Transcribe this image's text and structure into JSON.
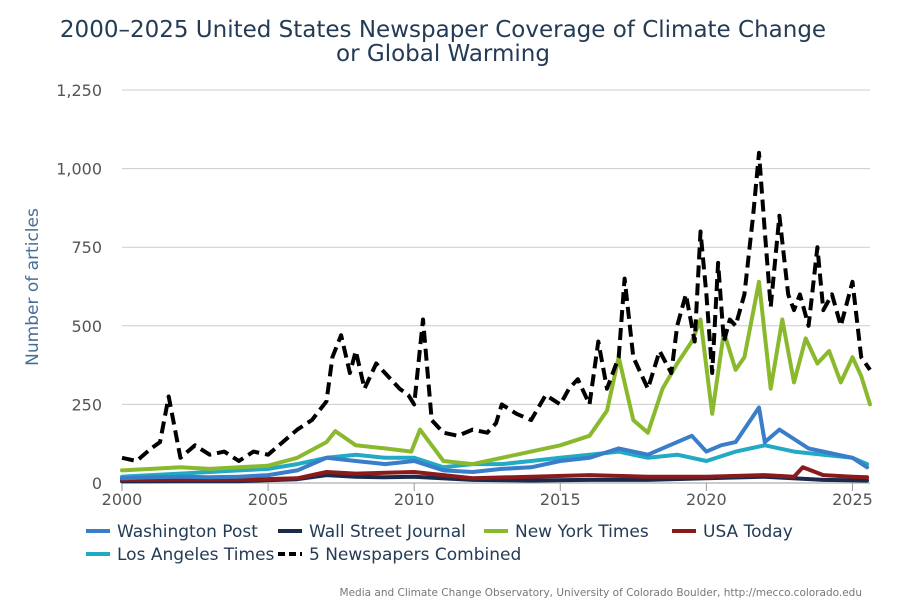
{
  "chart_data": {
    "type": "line",
    "title_line1": "2000–2025 United States Newspaper Coverage of Climate Change",
    "title_line2": "or Global Warming",
    "ylabel": "Number of articles",
    "xlabel": "",
    "xlim": [
      2000,
      2025.6
    ],
    "ylim": [
      0,
      1250
    ],
    "x_ticks": [
      2000,
      2005,
      2010,
      2015,
      2020,
      2025
    ],
    "x_tick_labels": [
      "2000",
      "2005",
      "2010",
      "2015",
      "2020",
      "2025"
    ],
    "y_ticks": [
      0,
      250,
      500,
      750,
      1000,
      1250
    ],
    "y_tick_labels": [
      "0",
      "250",
      "500",
      "750",
      "1,000",
      "1,250"
    ],
    "grid": "horizontal",
    "legend_position": "bottom",
    "credit": "Media and Climate Change Observatory, University of Colorado Boulder, http://mecco.colorado.edu",
    "series": [
      {
        "name": "Washington Post",
        "color": "#3a7dc9",
        "dash": "solid",
        "x": [
          2000,
          2001,
          2002,
          2003,
          2004,
          2005,
          2006,
          2007,
          2008,
          2009,
          2010,
          2011,
          2012,
          2013,
          2014,
          2015,
          2016,
          2017,
          2018,
          2019,
          2019.5,
          2020,
          2020.5,
          2021,
          2021.8,
          2022,
          2022.5,
          2023,
          2023.5,
          2024,
          2025,
          2025.5
        ],
        "y": [
          15,
          18,
          20,
          18,
          20,
          25,
          40,
          80,
          70,
          60,
          70,
          40,
          35,
          45,
          50,
          70,
          80,
          110,
          90,
          130,
          150,
          100,
          120,
          130,
          240,
          130,
          170,
          140,
          110,
          100,
          80,
          50
        ]
      },
      {
        "name": "Wall Street Journal",
        "color": "#1a2a4a",
        "dash": "solid",
        "x": [
          2000,
          2002,
          2004,
          2006,
          2007,
          2008,
          2009,
          2010,
          2012,
          2014,
          2016,
          2018,
          2020,
          2022,
          2024,
          2025.5
        ],
        "y": [
          5,
          6,
          6,
          12,
          25,
          20,
          18,
          20,
          10,
          8,
          10,
          10,
          15,
          20,
          10,
          8
        ]
      },
      {
        "name": "New York Times",
        "color": "#8ab92d",
        "dash": "solid",
        "x": [
          2000,
          2001,
          2002,
          2003,
          2004,
          2005,
          2006,
          2007,
          2007.3,
          2008,
          2009,
          2009.9,
          2010.2,
          2011,
          2012,
          2013,
          2014,
          2015,
          2016,
          2016.6,
          2017,
          2017.5,
          2018,
          2018.5,
          2019,
          2019.5,
          2019.8,
          2020.2,
          2020.6,
          2021,
          2021.3,
          2021.8,
          2022.2,
          2022.6,
          2023,
          2023.4,
          2023.8,
          2024.2,
          2024.6,
          2025,
          2025.3,
          2025.6
        ],
        "y": [
          40,
          45,
          50,
          45,
          50,
          55,
          80,
          130,
          165,
          120,
          110,
          100,
          170,
          70,
          60,
          80,
          100,
          120,
          150,
          230,
          400,
          200,
          160,
          300,
          380,
          450,
          520,
          220,
          480,
          360,
          400,
          640,
          300,
          520,
          320,
          460,
          380,
          420,
          320,
          400,
          340,
          250
        ]
      },
      {
        "name": "USA Today",
        "color": "#8b1a1a",
        "dash": "solid",
        "x": [
          2000,
          2002,
          2004,
          2006,
          2007,
          2008,
          2010,
          2012,
          2014,
          2016,
          2018,
          2020,
          2022,
          2023,
          2023.3,
          2024,
          2025,
          2025.5
        ],
        "y": [
          10,
          10,
          10,
          15,
          35,
          30,
          35,
          15,
          20,
          25,
          20,
          20,
          25,
          20,
          50,
          25,
          20,
          18
        ]
      },
      {
        "name": "Los Angeles Times",
        "color": "#22aac4",
        "dash": "solid",
        "x": [
          2000,
          2001,
          2002,
          2003,
          2004,
          2005,
          2006,
          2007,
          2008,
          2009,
          2010,
          2011,
          2012,
          2013,
          2014,
          2015,
          2016,
          2017,
          2018,
          2019,
          2020,
          2021,
          2022,
          2023,
          2024,
          2025,
          2025.5
        ],
        "y": [
          20,
          25,
          30,
          35,
          40,
          45,
          60,
          80,
          90,
          80,
          80,
          50,
          60,
          60,
          70,
          80,
          90,
          100,
          80,
          90,
          70,
          100,
          120,
          100,
          90,
          80,
          60
        ]
      },
      {
        "name": "5 Newspapers Combined",
        "color": "#000000",
        "dash": "dashed",
        "x": [
          2000,
          2000.5,
          2001,
          2001.3,
          2001.6,
          2002,
          2002.5,
          2003,
          2003.5,
          2004,
          2004.5,
          2005,
          2005.5,
          2006,
          2006.5,
          2007,
          2007.2,
          2007.5,
          2007.8,
          2008,
          2008.3,
          2008.7,
          2009,
          2009.5,
          2009.8,
          2010,
          2010.3,
          2010.6,
          2011,
          2011.5,
          2012,
          2012.5,
          2012.8,
          2013,
          2013.5,
          2014,
          2014.5,
          2015,
          2015.3,
          2015.6,
          2016,
          2016.3,
          2016.6,
          2017,
          2017.2,
          2017.5,
          2018,
          2018.4,
          2018.8,
          2019,
          2019.3,
          2019.6,
          2019.8,
          2020,
          2020.2,
          2020.4,
          2020.6,
          2020.8,
          2021,
          2021.3,
          2021.6,
          2021.8,
          2022,
          2022.2,
          2022.5,
          2022.8,
          2023,
          2023.2,
          2023.5,
          2023.8,
          2024,
          2024.3,
          2024.6,
          2025,
          2025.3,
          2025.6
        ],
        "y": [
          80,
          70,
          110,
          130,
          275,
          80,
          120,
          90,
          100,
          70,
          100,
          90,
          130,
          170,
          200,
          260,
          400,
          470,
          350,
          420,
          300,
          380,
          350,
          300,
          280,
          250,
          520,
          200,
          160,
          150,
          170,
          160,
          190,
          250,
          220,
          200,
          280,
          250,
          300,
          330,
          250,
          450,
          300,
          400,
          650,
          400,
          300,
          420,
          350,
          500,
          600,
          450,
          800,
          600,
          350,
          700,
          450,
          520,
          500,
          600,
          850,
          1050,
          800,
          560,
          850,
          600,
          550,
          600,
          500,
          750,
          550,
          600,
          500,
          640,
          400,
          360
        ]
      }
    ]
  }
}
